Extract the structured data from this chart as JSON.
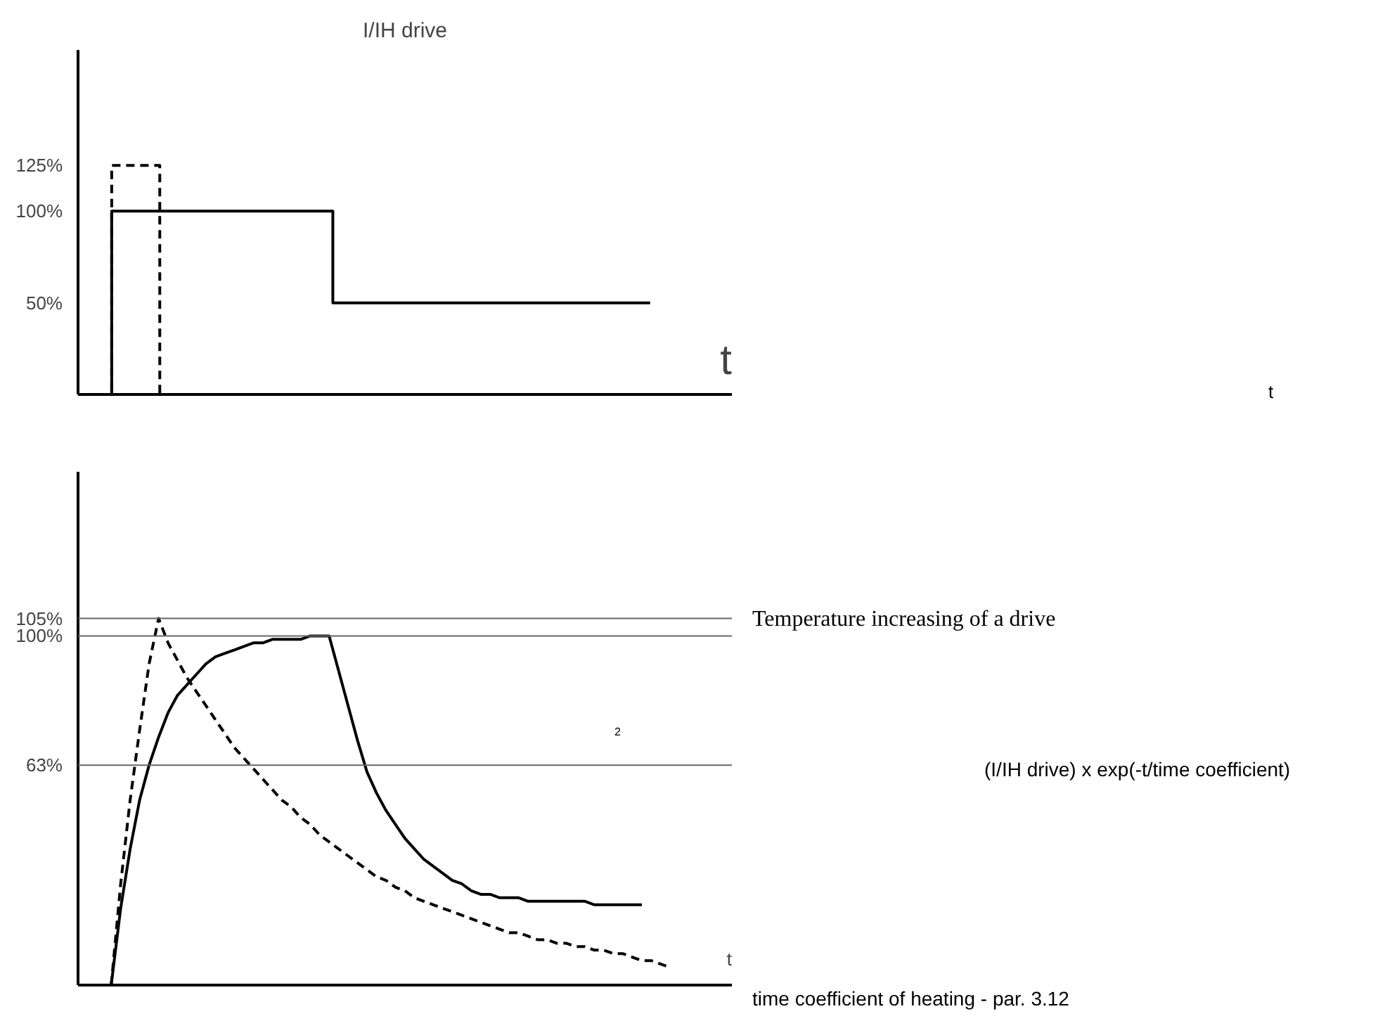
{
  "chart_data": [
    {
      "type": "step",
      "title": "I/IH drive",
      "xlabel": "t",
      "categories": [
        null,
        null,
        null,
        null,
        null,
        null,
        null,
        null,
        null,
        null,
        null,
        null,
        null,
        null,
        null,
        null,
        null,
        null,
        null,
        null,
        null,
        null,
        null,
        null,
        null,
        null,
        null,
        null,
        null,
        null,
        null,
        null,
        null,
        null,
        null,
        null,
        null,
        null,
        null,
        null,
        null,
        null,
        null,
        null,
        null,
        null,
        null,
        null,
        null,
        null,
        null,
        null,
        null,
        null,
        null,
        null,
        null,
        null,
        null,
        null,
        null,
        null,
        null,
        null,
        null,
        null,
        null,
        null
      ],
      "ylim": [
        0,
        188
      ],
      "yticks": [
        {
          "value": 50,
          "label": "50%"
        },
        {
          "value": 100,
          "label": "100%"
        },
        {
          "value": 125,
          "label": "125%"
        }
      ],
      "tick_labels": "y",
      "series": [
        {
          "color": "#000000",
          "line_style": "solid",
          "values": [
            null,
            null,
            0,
            100,
            100,
            100,
            100,
            100,
            100,
            100,
            100,
            100,
            100,
            100,
            100,
            100,
            100,
            100,
            100,
            100,
            100,
            100,
            100,
            100,
            100,
            100,
            50,
            50,
            50,
            50,
            50,
            50,
            50,
            50,
            50,
            50,
            50,
            50,
            50,
            50,
            50,
            50,
            50,
            50,
            50,
            50,
            50,
            50,
            50,
            50,
            50,
            50,
            50,
            50,
            50,
            50,
            50,
            50,
            50,
            50,
            null,
            null,
            null,
            null,
            null,
            null,
            null,
            null
          ]
        },
        {
          "color": "#000000",
          "line_style": "dashed",
          "values": [
            null,
            null,
            0,
            125,
            125,
            125,
            125,
            125,
            0,
            null,
            null,
            null,
            null,
            null,
            null,
            null,
            null,
            null,
            null,
            null,
            null,
            null,
            null,
            null,
            null,
            null,
            null,
            null,
            null,
            null,
            null,
            null,
            null,
            null,
            null,
            null,
            null,
            null,
            null,
            null,
            null,
            null,
            null,
            null,
            null,
            null,
            null,
            null,
            null,
            null,
            null,
            null,
            null,
            null,
            null,
            null,
            null,
            null,
            null,
            null,
            null,
            null,
            null,
            null,
            null,
            null,
            null,
            null
          ]
        }
      ],
      "annotations": [
        "t"
      ]
    },
    {
      "type": "line",
      "xlabel": "t",
      "categories": [
        null,
        null,
        null,
        null,
        null,
        null,
        null,
        null,
        null,
        null,
        null,
        null,
        null,
        null,
        null,
        null,
        null,
        null,
        null,
        null,
        null,
        null,
        null,
        null,
        null,
        null,
        null,
        null,
        null,
        null,
        null,
        null,
        null,
        null,
        null,
        null,
        null,
        null,
        null,
        null,
        null,
        null,
        null,
        null,
        null,
        null,
        null,
        null,
        null,
        null,
        null,
        null,
        null,
        null,
        null,
        null,
        null,
        null,
        null,
        null,
        null,
        null,
        null,
        null,
        null,
        null,
        null,
        null,
        null
      ],
      "ylim": [
        0,
        147
      ],
      "yticks": [
        {
          "value": 63,
          "label": "63%"
        },
        {
          "value": 100,
          "label": "100%"
        },
        {
          "value": 105,
          "label": "105%"
        }
      ],
      "tick_labels": "y",
      "series": [
        {
          "color": "#000000",
          "line_style": "solid",
          "values": [
            null,
            null,
            null,
            0,
            22,
            39,
            53,
            63,
            71,
            78,
            83,
            86,
            89,
            92,
            94,
            95,
            96,
            97,
            98,
            98,
            99,
            99,
            99,
            99,
            100,
            100,
            100,
            90,
            80,
            70,
            61,
            55,
            50,
            46,
            42,
            39,
            36,
            34,
            32,
            30,
            29,
            27,
            26,
            26,
            25,
            25,
            25,
            24,
            24,
            24,
            24,
            24,
            24,
            24,
            23,
            23,
            23,
            23,
            23,
            23,
            null,
            null,
            null,
            null,
            null,
            null,
            null,
            null,
            null
          ]
        },
        {
          "color": "#000000",
          "line_style": "dashed",
          "values": [
            null,
            null,
            null,
            0,
            29,
            53,
            73,
            92,
            105,
            98,
            93,
            88,
            84,
            80,
            76,
            72,
            68,
            65,
            62,
            59,
            56,
            53,
            51,
            48,
            46,
            43,
            41,
            39,
            37,
            35,
            33,
            31,
            30,
            28,
            27,
            25,
            24,
            23,
            22,
            21,
            20,
            19,
            18,
            17,
            16,
            15,
            15,
            14,
            13,
            13,
            12,
            12,
            11,
            11,
            10,
            10,
            9,
            9,
            8,
            7,
            7,
            6,
            5,
            null,
            null,
            null,
            null,
            null,
            null
          ]
        }
      ],
      "ref_lines": [
        {
          "axis": "y",
          "value": 105,
          "color": "#666666"
        },
        {
          "axis": "y",
          "value": 100,
          "color": "#666666"
        },
        {
          "axis": "y",
          "value": 63,
          "color": "#666666"
        }
      ],
      "annotations": [
        "Temperature increasing of a drive",
        "2",
        "(I/IH drive) x exp(-t/time coefficient)",
        "time coefficient  of heating - par. 3.12"
      ]
    }
  ]
}
